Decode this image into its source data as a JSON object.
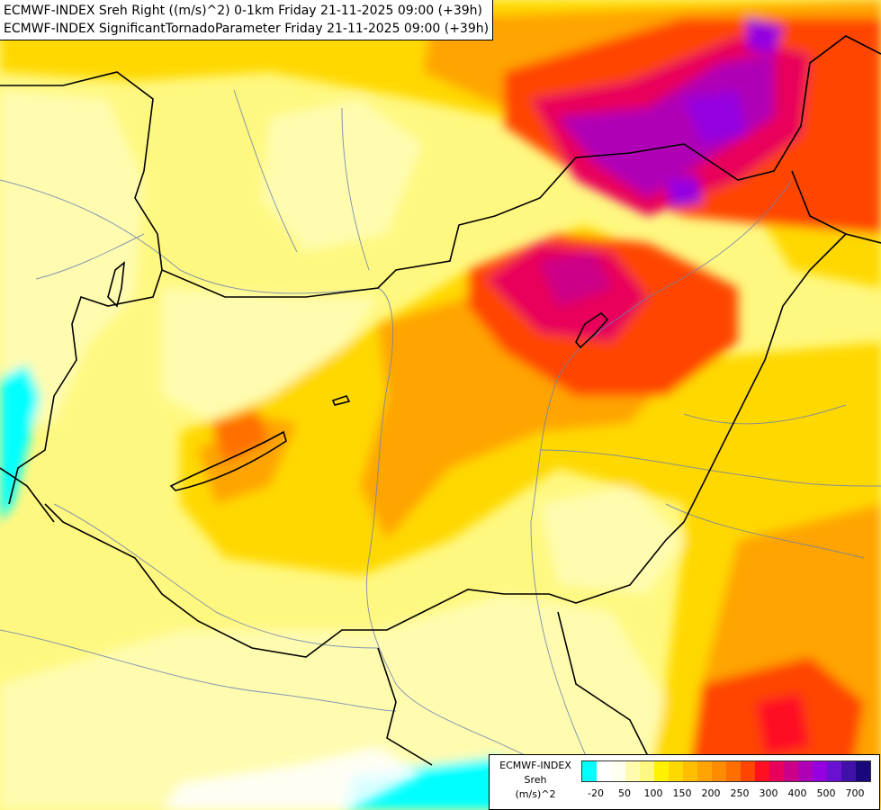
{
  "header": {
    "line1": "ECMWF-INDEX Sreh Right ((m/s)^2) 0-1km Friday 21-11-2025 09:00 (+39h)",
    "line2": "ECMWF-INDEX SignificantTornadoParameter Friday 21-11-2025 09:00 (+39h)"
  },
  "legend": {
    "title_line1": "ECMWF-INDEX",
    "title_line2": "Sreh",
    "title_line3": "(m/s)^2",
    "colors": [
      "#00ffff",
      "#ffffff",
      "#fffff0",
      "#fffcb0",
      "#fff880",
      "#fff200",
      "#ffd800",
      "#ffbf00",
      "#ffa400",
      "#ff8c00",
      "#ff6f00",
      "#ff4500",
      "#ff1020",
      "#e8005a",
      "#cc0088",
      "#b000b5",
      "#9400e0",
      "#6a10d0",
      "#4010a8",
      "#18087c"
    ],
    "ticks": [
      {
        "label": "-20",
        "index": 1
      },
      {
        "label": "50",
        "index": 3
      },
      {
        "label": "100",
        "index": 5
      },
      {
        "label": "150",
        "index": 7
      },
      {
        "label": "200",
        "index": 9
      },
      {
        "label": "250",
        "index": 11
      },
      {
        "label": "300",
        "index": 13
      },
      {
        "label": "400",
        "index": 15
      },
      {
        "label": "500",
        "index": 17
      },
      {
        "label": "700",
        "index": 19
      }
    ]
  }
}
